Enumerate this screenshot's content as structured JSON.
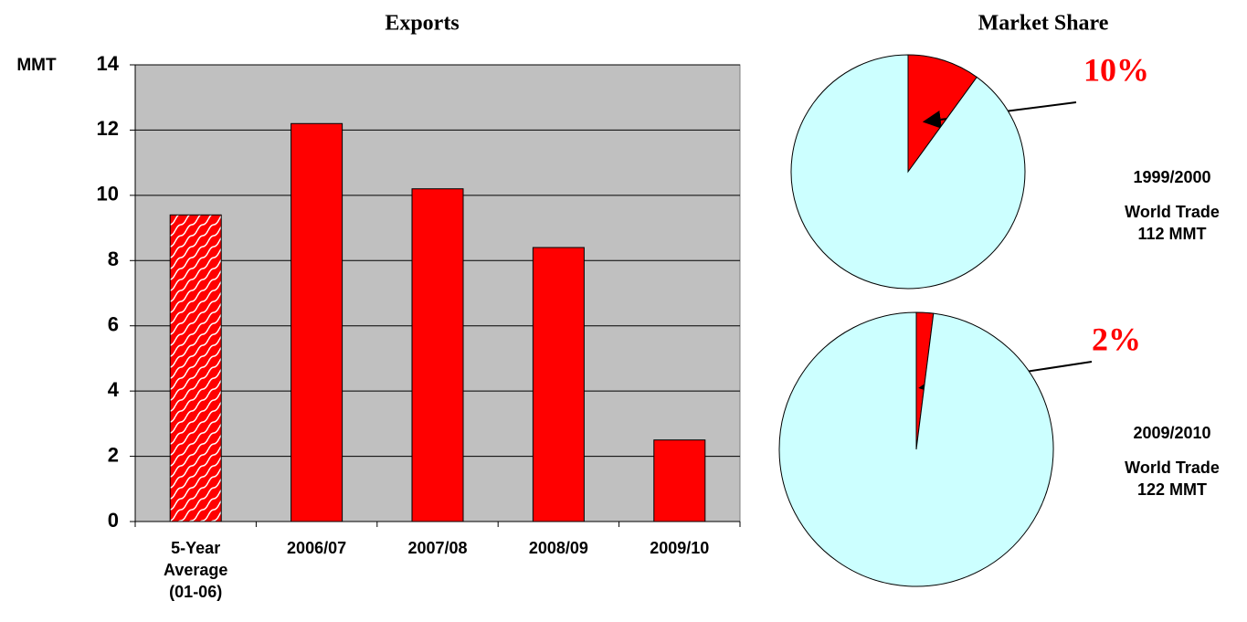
{
  "chart_data": [
    {
      "type": "bar",
      "title": "Exports",
      "y_label": "MMT",
      "categories": [
        "5-Year Average (01-06)",
        "2006/07",
        "2007/08",
        "2008/09",
        "2009/10"
      ],
      "values": [
        9.4,
        12.2,
        10.2,
        8.4,
        2.5
      ],
      "hatched": [
        true,
        false,
        false,
        false,
        false
      ],
      "color": "#ff0000",
      "background": "#c0c0c0",
      "ylim": [
        0,
        14
      ],
      "yticks": [
        0,
        2,
        4,
        6,
        8,
        10,
        12,
        14
      ],
      "grid": true
    },
    {
      "type": "pie",
      "title": "Market Share",
      "period": "1999/2000",
      "note": "World Trade 112 MMT",
      "values": [
        10,
        90
      ],
      "value_labels": [
        "10%",
        null
      ],
      "colors": [
        "#ff0000",
        "#ccffff"
      ]
    },
    {
      "type": "pie",
      "period": "2009/2010",
      "note": "World Trade 122 MMT",
      "values": [
        2,
        98
      ],
      "value_labels": [
        "2%",
        null
      ],
      "colors": [
        "#ff0000",
        "#ccffff"
      ]
    }
  ]
}
